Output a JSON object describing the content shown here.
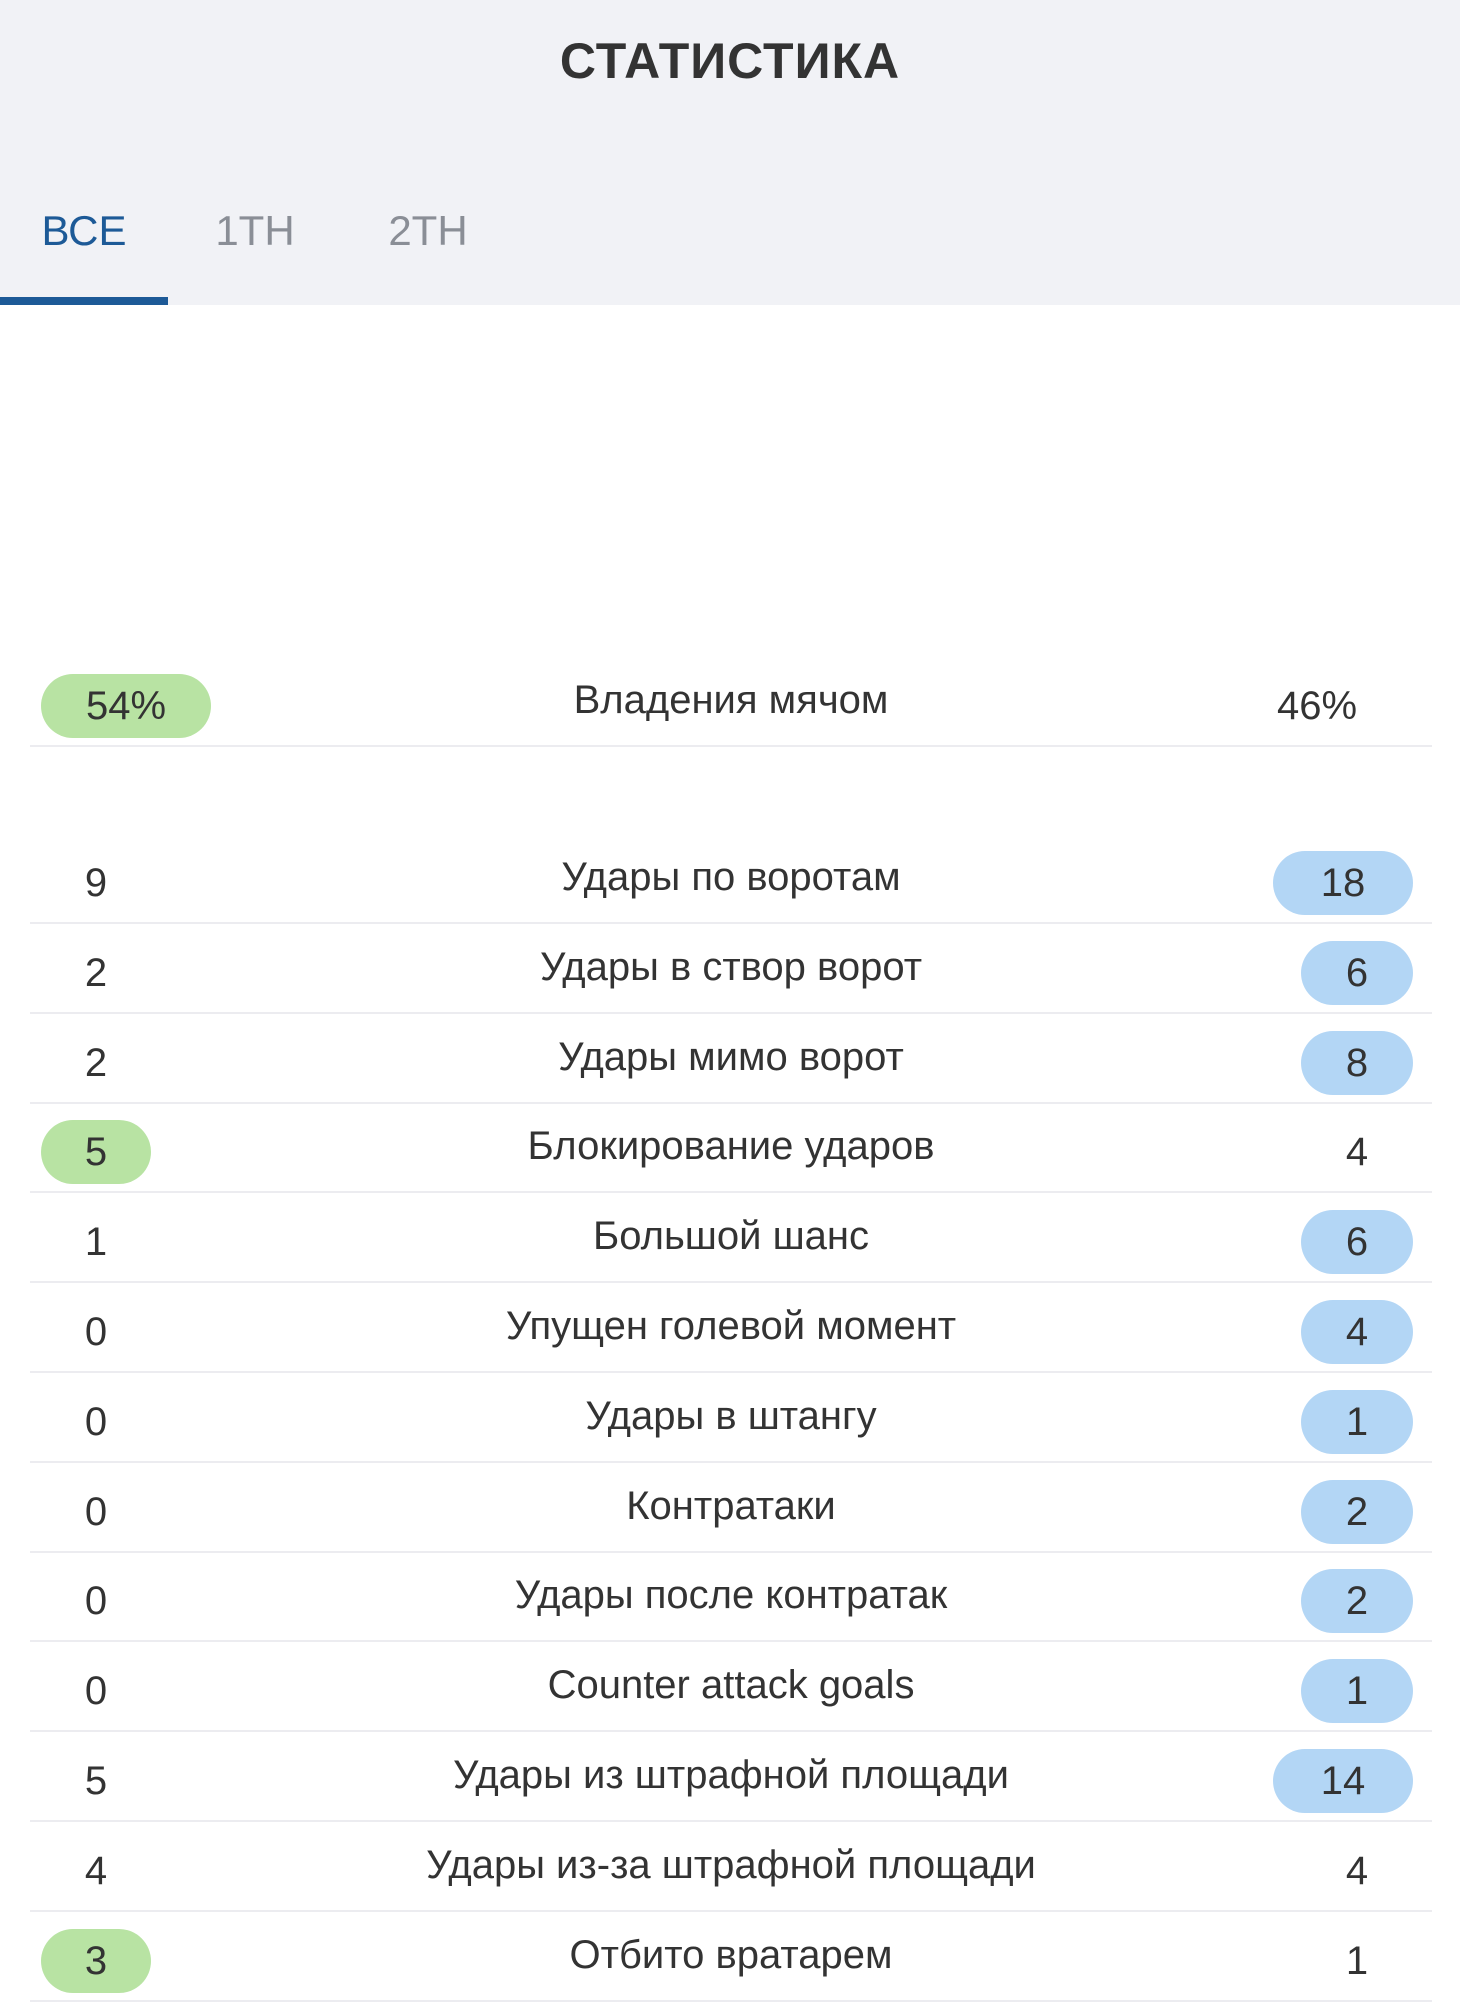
{
  "header": {
    "title": "СТАТИСТИКА"
  },
  "tabs": [
    {
      "label": "ВСЕ",
      "active": true
    },
    {
      "label": "1ТН",
      "active": false
    },
    {
      "label": "2ТН",
      "active": false
    }
  ],
  "colors": {
    "accent": "#1d5a97",
    "home_highlight": "#b8e3a3",
    "away_highlight": "#b3d6f5",
    "header_bg": "#f1f2f6"
  },
  "possession": {
    "label": "Владения мячом",
    "home": "54%",
    "away": "46%",
    "leader": "home"
  },
  "stats": [
    {
      "label": "Удары по воротам",
      "home": "9",
      "away": "18",
      "leader": "away"
    },
    {
      "label": "Удары в створ ворот",
      "home": "2",
      "away": "6",
      "leader": "away"
    },
    {
      "label": "Удары мимо ворот",
      "home": "2",
      "away": "8",
      "leader": "away"
    },
    {
      "label": "Блокирование ударов",
      "home": "5",
      "away": "4",
      "leader": "home"
    },
    {
      "label": "Большой шанс",
      "home": "1",
      "away": "6",
      "leader": "away"
    },
    {
      "label": "Упущен голевой момент",
      "home": "0",
      "away": "4",
      "leader": "away"
    },
    {
      "label": "Удары в штангу",
      "home": "0",
      "away": "1",
      "leader": "away"
    },
    {
      "label": "Контратаки",
      "home": "0",
      "away": "2",
      "leader": "away"
    },
    {
      "label": "Удары после контратак",
      "home": "0",
      "away": "2",
      "leader": "away"
    },
    {
      "label": "Counter attack goals",
      "home": "0",
      "away": "1",
      "leader": "away"
    },
    {
      "label": "Удары из штрафной площади",
      "home": "5",
      "away": "14",
      "leader": "away"
    },
    {
      "label": "Удары из-за штрафной площади",
      "home": "4",
      "away": "4",
      "leader": "none"
    },
    {
      "label": "Отбито вратарем",
      "home": "3",
      "away": "1",
      "leader": "home"
    }
  ]
}
